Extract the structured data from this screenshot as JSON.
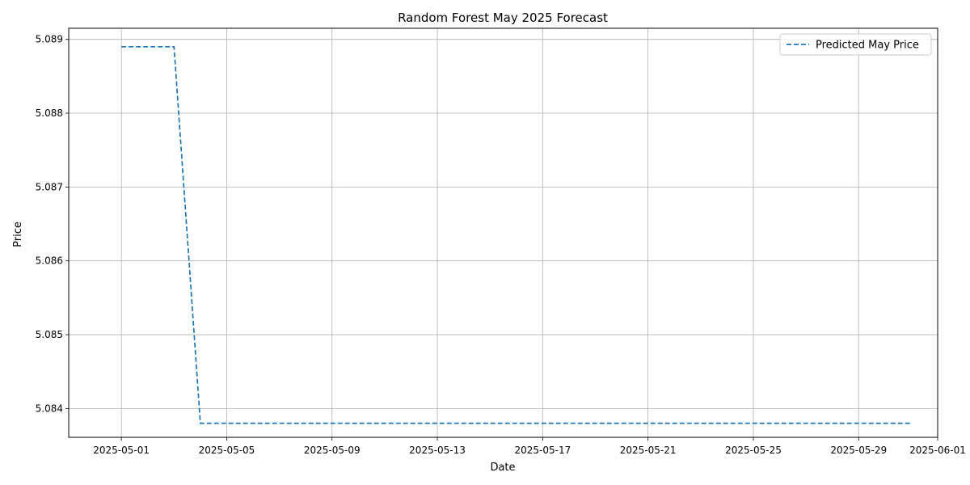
{
  "chart_data": {
    "type": "line",
    "title": "Random Forest May 2025 Forecast",
    "xlabel": "Date",
    "ylabel": "Price",
    "x_type": "date",
    "xlim": [
      "2025-04-29",
      "2025-06-01"
    ],
    "ylim": [
      5.08361,
      5.08915
    ],
    "x_ticks": [
      "2025-05-01",
      "2025-05-05",
      "2025-05-09",
      "2025-05-13",
      "2025-05-17",
      "2025-05-21",
      "2025-05-25",
      "2025-05-29",
      "2025-06-01"
    ],
    "y_ticks": [
      "5.084",
      "5.085",
      "5.086",
      "5.087",
      "5.088",
      "5.089"
    ],
    "grid": true,
    "legend_position": "top-right",
    "series": [
      {
        "name": "Predicted May Price",
        "color": "#1f77b4",
        "line_style": "dashed",
        "x": [
          "2025-05-01",
          "2025-05-02",
          "2025-05-03",
          "2025-05-04",
          "2025-05-05",
          "2025-05-06",
          "2025-05-07",
          "2025-05-08",
          "2025-05-09",
          "2025-05-10",
          "2025-05-11",
          "2025-05-12",
          "2025-05-13",
          "2025-05-14",
          "2025-05-15",
          "2025-05-16",
          "2025-05-17",
          "2025-05-18",
          "2025-05-19",
          "2025-05-20",
          "2025-05-21",
          "2025-05-22",
          "2025-05-23",
          "2025-05-24",
          "2025-05-25",
          "2025-05-26",
          "2025-05-27",
          "2025-05-28",
          "2025-05-29",
          "2025-05-30",
          "2025-05-31"
        ],
        "values": [
          5.0889,
          5.0889,
          5.0889,
          5.0838,
          5.0838,
          5.0838,
          5.0838,
          5.0838,
          5.0838,
          5.0838,
          5.0838,
          5.0838,
          5.0838,
          5.0838,
          5.0838,
          5.0838,
          5.0838,
          5.0838,
          5.0838,
          5.0838,
          5.0838,
          5.0838,
          5.0838,
          5.0838,
          5.0838,
          5.0838,
          5.0838,
          5.0838,
          5.0838,
          5.0838,
          5.0838
        ]
      }
    ]
  }
}
